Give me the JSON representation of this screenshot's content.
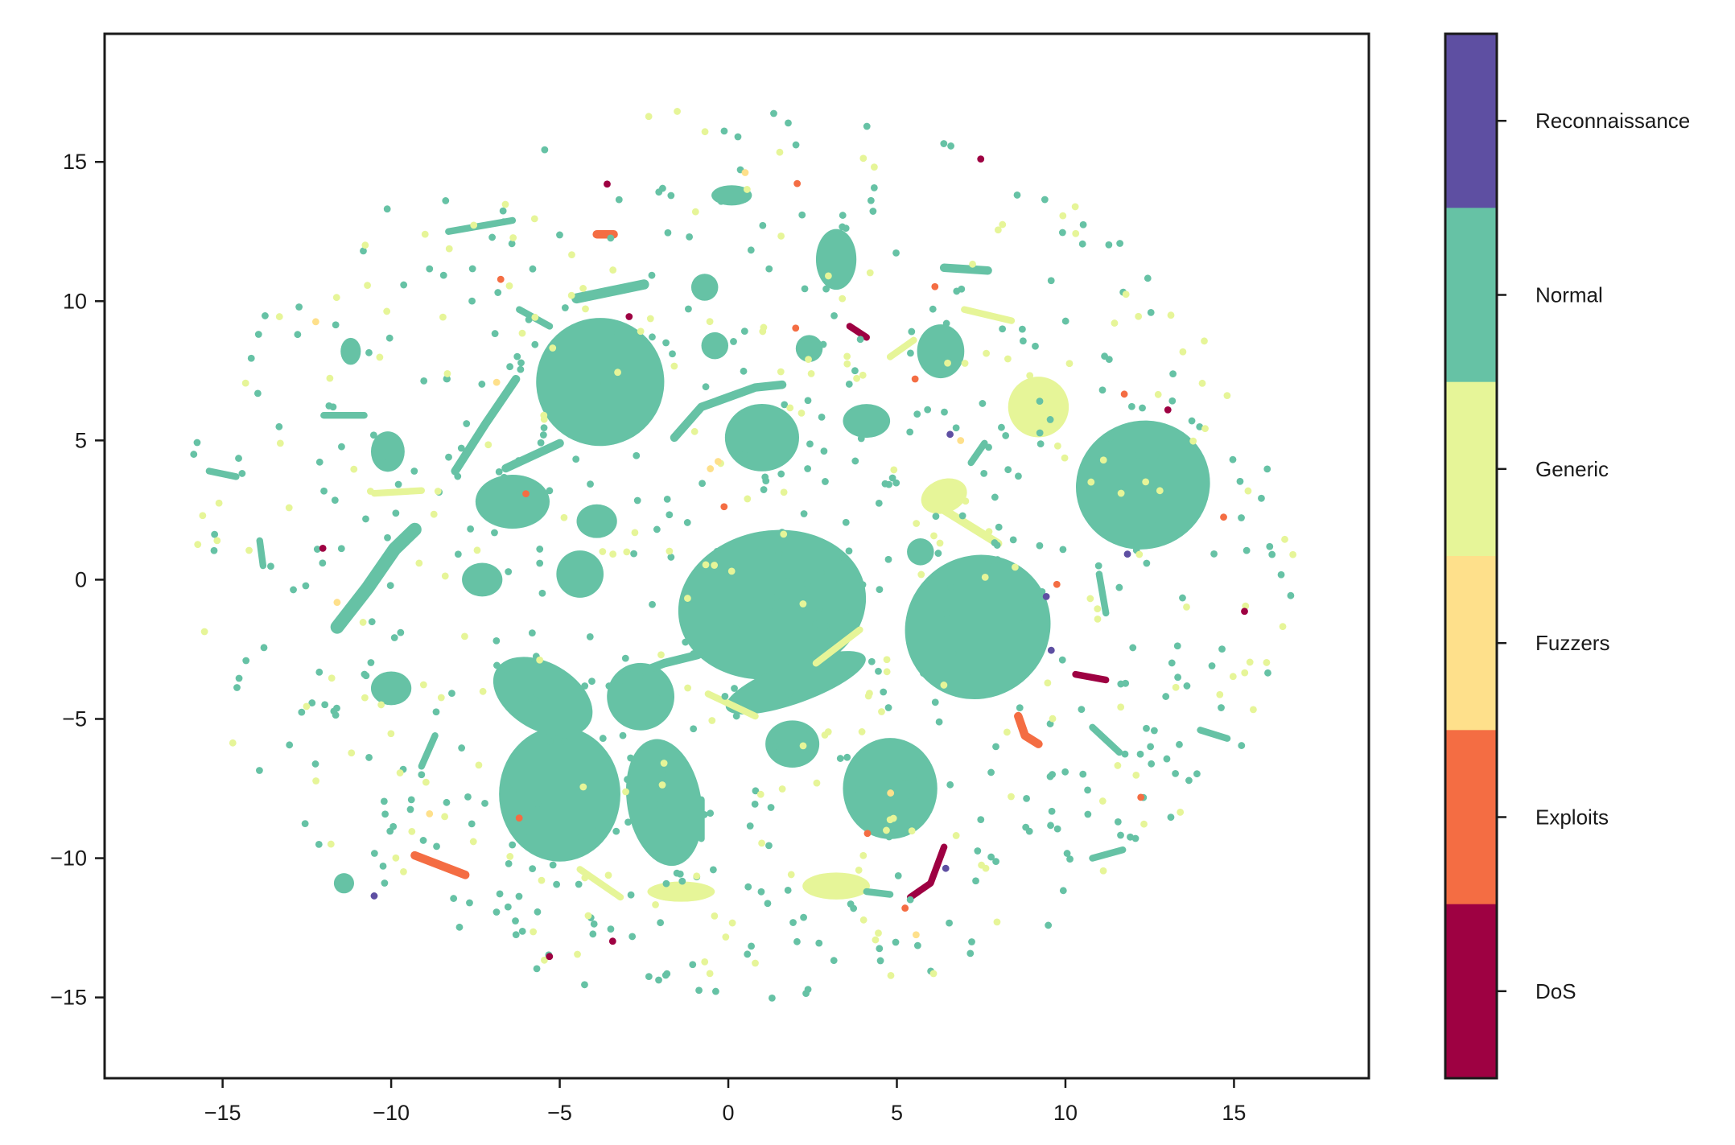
{
  "chart_data": {
    "type": "scatter",
    "title": "",
    "xlabel": "",
    "ylabel": "",
    "xlim": [
      -18.5,
      19.0
    ],
    "ylim": [
      -17.9,
      19.6
    ],
    "xticks": [
      -15,
      -10,
      -5,
      0,
      5,
      10,
      15
    ],
    "yticks": [
      -15,
      -10,
      -5,
      0,
      5,
      10,
      15
    ],
    "xtick_labels": [
      "−15",
      "−10",
      "−5",
      "0",
      "5",
      "10",
      "15"
    ],
    "ytick_labels": [
      "−15",
      "−10",
      "−5",
      "0",
      "5",
      "10",
      "15"
    ],
    "grid": false,
    "colorbar": {
      "categories": [
        "Reconnaissance",
        "Normal",
        "Generic",
        "Fuzzers",
        "Exploits",
        "DoS"
      ],
      "colors": [
        "#5e4fa2",
        "#66c2a5",
        "#e6f598",
        "#fee08b",
        "#f46d43",
        "#9e0142"
      ]
    },
    "clusters": [
      {
        "class": "Normal",
        "shape": "blob",
        "cx": 1.3,
        "cy": -0.9,
        "rx": 2.8,
        "ry": 2.2,
        "angle": 10
      },
      {
        "class": "Normal",
        "shape": "blob",
        "cx": 7.4,
        "cy": -1.7,
        "rx": 2.2,
        "ry": 2.1,
        "angle": 40
      },
      {
        "class": "Normal",
        "shape": "blob",
        "cx": 12.3,
        "cy": 3.4,
        "rx": 2.0,
        "ry": 1.9,
        "angle": 20
      },
      {
        "class": "Normal",
        "shape": "blob",
        "cx": -3.8,
        "cy": 7.1,
        "rx": 1.9,
        "ry": 1.9,
        "angle": 15
      },
      {
        "class": "Normal",
        "shape": "blob",
        "cx": -5.0,
        "cy": -7.7,
        "rx": 1.8,
        "ry": 2.0,
        "angle": 0
      },
      {
        "class": "Normal",
        "shape": "blob",
        "cx": -1.9,
        "cy": -8.0,
        "rx": 1.1,
        "ry": 1.9,
        "angle": 10
      },
      {
        "class": "Normal",
        "shape": "blob",
        "cx": 4.8,
        "cy": -7.5,
        "rx": 1.4,
        "ry": 1.5,
        "angle": 0
      },
      {
        "class": "Normal",
        "shape": "blob",
        "cx": 1.0,
        "cy": 5.1,
        "rx": 1.1,
        "ry": 1.0,
        "angle": 0
      },
      {
        "class": "Normal",
        "shape": "blob",
        "cx": -6.4,
        "cy": 2.8,
        "rx": 1.1,
        "ry": 0.8,
        "angle": 0
      },
      {
        "class": "Normal",
        "shape": "blob",
        "cx": 2.0,
        "cy": -3.7,
        "rx": 2.2,
        "ry": 0.6,
        "angle": 20
      },
      {
        "class": "Normal",
        "shape": "blob",
        "cx": -5.5,
        "cy": -4.2,
        "rx": 1.6,
        "ry": 1.0,
        "angle": -30
      },
      {
        "class": "Normal",
        "shape": "blob",
        "cx": -2.6,
        "cy": -4.2,
        "rx": 1.0,
        "ry": 1.0,
        "angle": 20
      },
      {
        "class": "Normal",
        "shape": "blob",
        "cx": 6.3,
        "cy": 8.2,
        "rx": 0.7,
        "ry": 0.8,
        "angle": 0
      },
      {
        "class": "Normal",
        "shape": "blob",
        "cx": 3.2,
        "cy": 11.5,
        "rx": 0.6,
        "ry": 0.9,
        "angle": 0
      },
      {
        "class": "Normal",
        "shape": "blob",
        "cx": -4.4,
        "cy": 0.2,
        "rx": 0.7,
        "ry": 0.7,
        "angle": 0
      },
      {
        "class": "Normal",
        "shape": "blob",
        "cx": -7.3,
        "cy": 0.0,
        "rx": 0.6,
        "ry": 0.5,
        "angle": 0
      },
      {
        "class": "Normal",
        "shape": "blob",
        "cx": -10.1,
        "cy": 4.6,
        "rx": 0.5,
        "ry": 0.6,
        "angle": 0
      },
      {
        "class": "Normal",
        "shape": "blob",
        "cx": -3.9,
        "cy": 2.1,
        "rx": 0.6,
        "ry": 0.5,
        "angle": 0
      },
      {
        "class": "Normal",
        "shape": "blob",
        "cx": 1.9,
        "cy": -5.9,
        "rx": 0.8,
        "ry": 0.7,
        "angle": 0
      },
      {
        "class": "Normal",
        "shape": "blob",
        "cx": -10.0,
        "cy": -3.9,
        "rx": 0.6,
        "ry": 0.5,
        "angle": 0
      },
      {
        "class": "Normal",
        "shape": "blob",
        "cx": 4.1,
        "cy": 5.7,
        "rx": 0.7,
        "ry": 0.5,
        "angle": 0
      },
      {
        "class": "Normal",
        "shape": "blob",
        "cx": 0.1,
        "cy": 13.8,
        "rx": 0.6,
        "ry": 0.3,
        "angle": 0
      },
      {
        "class": "Normal",
        "shape": "blob",
        "cx": -0.7,
        "cy": 10.5,
        "rx": 0.4,
        "ry": 0.4,
        "angle": 0
      },
      {
        "class": "Normal",
        "shape": "blob",
        "cx": -0.4,
        "cy": 8.4,
        "rx": 0.4,
        "ry": 0.4,
        "angle": 0
      },
      {
        "class": "Normal",
        "shape": "blob",
        "cx": 2.4,
        "cy": 8.3,
        "rx": 0.4,
        "ry": 0.4,
        "angle": 0
      },
      {
        "class": "Normal",
        "shape": "blob",
        "cx": -11.2,
        "cy": 8.2,
        "rx": 0.3,
        "ry": 0.4,
        "angle": 0
      },
      {
        "class": "Normal",
        "shape": "blob",
        "cx": -11.4,
        "cy": -10.9,
        "rx": 0.3,
        "ry": 0.3,
        "angle": 0
      },
      {
        "class": "Normal",
        "shape": "blob",
        "cx": 5.7,
        "cy": 1.0,
        "rx": 0.4,
        "ry": 0.4,
        "angle": 0
      },
      {
        "class": "Generic",
        "shape": "blob",
        "cx": 9.2,
        "cy": 6.2,
        "rx": 0.9,
        "ry": 0.9,
        "angle": 0
      },
      {
        "class": "Generic",
        "shape": "blob",
        "cx": 6.4,
        "cy": 3.0,
        "rx": 0.7,
        "ry": 0.5,
        "angle": 20
      },
      {
        "class": "Generic",
        "shape": "blob",
        "cx": 3.2,
        "cy": -11.0,
        "rx": 1.0,
        "ry": 0.4,
        "angle": 0
      },
      {
        "class": "Generic",
        "shape": "blob",
        "cx": -1.4,
        "cy": -11.2,
        "rx": 1.0,
        "ry": 0.3,
        "angle": 0
      },
      {
        "class": "Normal",
        "shape": "stroke",
        "points": [
          [
            -1.6,
            5.1
          ],
          [
            -0.8,
            6.2
          ],
          [
            0.8,
            6.9
          ],
          [
            1.6,
            7.0
          ]
        ],
        "width": 0.25
      },
      {
        "class": "Normal",
        "shape": "stroke",
        "points": [
          [
            -11.6,
            -1.7
          ],
          [
            -10.7,
            -0.3
          ],
          [
            -9.9,
            1.1
          ],
          [
            -9.3,
            1.8
          ]
        ],
        "width": 0.4
      },
      {
        "class": "Normal",
        "shape": "stroke",
        "points": [
          [
            -8.1,
            3.9
          ],
          [
            -7.2,
            5.6
          ],
          [
            -6.3,
            7.2
          ]
        ],
        "width": 0.25
      },
      {
        "class": "Normal",
        "shape": "stroke",
        "points": [
          [
            -5.0,
            4.9
          ],
          [
            -6.6,
            4.0
          ]
        ],
        "width": 0.25
      },
      {
        "class": "Normal",
        "shape": "stroke",
        "points": [
          [
            -6.2,
            9.7
          ],
          [
            -5.3,
            9.1
          ]
        ],
        "width": 0.2
      },
      {
        "class": "Normal",
        "shape": "stroke",
        "points": [
          [
            -4.5,
            10.1
          ],
          [
            -2.5,
            10.6
          ]
        ],
        "width": 0.3
      },
      {
        "class": "Normal",
        "shape": "stroke",
        "points": [
          [
            -8.3,
            12.5
          ],
          [
            -6.4,
            12.9
          ]
        ],
        "width": 0.2
      },
      {
        "class": "Normal",
        "shape": "stroke",
        "points": [
          [
            -3.2,
            -3.6
          ],
          [
            -1.9,
            -3.0
          ],
          [
            -0.9,
            -2.7
          ]
        ],
        "width": 0.25
      },
      {
        "class": "Normal",
        "shape": "stroke",
        "points": [
          [
            -0.8,
            -7.9
          ],
          [
            -0.8,
            -9.3
          ]
        ],
        "width": 0.2
      },
      {
        "class": "Normal",
        "shape": "stroke",
        "points": [
          [
            6.4,
            11.2
          ],
          [
            7.7,
            11.1
          ]
        ],
        "width": 0.25
      },
      {
        "class": "Normal",
        "shape": "stroke",
        "points": [
          [
            7.2,
            4.2
          ],
          [
            7.6,
            4.9
          ]
        ],
        "width": 0.2
      },
      {
        "class": "Normal",
        "shape": "stroke",
        "points": [
          [
            11.0,
            0.2
          ],
          [
            11.2,
            -1.2
          ]
        ],
        "width": 0.2
      },
      {
        "class": "Normal",
        "shape": "stroke",
        "points": [
          [
            10.8,
            -5.3
          ],
          [
            11.6,
            -6.2
          ]
        ],
        "width": 0.2
      },
      {
        "class": "Normal",
        "shape": "stroke",
        "points": [
          [
            10.8,
            -10.0
          ],
          [
            11.7,
            -9.7
          ]
        ],
        "width": 0.2
      },
      {
        "class": "Normal",
        "shape": "stroke",
        "points": [
          [
            14.0,
            -5.4
          ],
          [
            14.8,
            -5.7
          ]
        ],
        "width": 0.2
      },
      {
        "class": "Normal",
        "shape": "stroke",
        "points": [
          [
            -15.4,
            3.9
          ],
          [
            -14.6,
            3.7
          ]
        ],
        "width": 0.2
      },
      {
        "class": "Normal",
        "shape": "stroke",
        "points": [
          [
            -13.9,
            1.4
          ],
          [
            -13.8,
            0.5
          ]
        ],
        "width": 0.2
      },
      {
        "class": "Normal",
        "shape": "stroke",
        "points": [
          [
            -12.0,
            5.9
          ],
          [
            -10.8,
            5.9
          ]
        ],
        "width": 0.2
      },
      {
        "class": "Normal",
        "shape": "stroke",
        "points": [
          [
            -9.1,
            -6.7
          ],
          [
            -8.7,
            -5.6
          ]
        ],
        "width": 0.2
      },
      {
        "class": "Normal",
        "shape": "stroke",
        "points": [
          [
            4.1,
            -11.2
          ],
          [
            4.8,
            -11.3
          ]
        ],
        "width": 0.2
      },
      {
        "class": "Generic",
        "shape": "stroke",
        "points": [
          [
            6.0,
            2.8
          ],
          [
            7.2,
            1.9
          ],
          [
            8.0,
            1.3
          ]
        ],
        "width": 0.25
      },
      {
        "class": "Generic",
        "shape": "stroke",
        "points": [
          [
            4.8,
            8.0
          ],
          [
            5.5,
            8.6
          ]
        ],
        "width": 0.2
      },
      {
        "class": "Generic",
        "shape": "stroke",
        "points": [
          [
            -10.5,
            3.1
          ],
          [
            -9.1,
            3.2
          ]
        ],
        "width": 0.2
      },
      {
        "class": "Generic",
        "shape": "stroke",
        "points": [
          [
            -0.6,
            -4.1
          ],
          [
            0.8,
            -4.9
          ]
        ],
        "width": 0.2
      },
      {
        "class": "Generic",
        "shape": "stroke",
        "points": [
          [
            -4.4,
            -10.4
          ],
          [
            -3.2,
            -11.4
          ]
        ],
        "width": 0.2
      },
      {
        "class": "Generic",
        "shape": "stroke",
        "points": [
          [
            7.0,
            9.7
          ],
          [
            8.4,
            9.3
          ]
        ],
        "width": 0.2
      },
      {
        "class": "Generic",
        "shape": "stroke",
        "points": [
          [
            2.6,
            -3.0
          ],
          [
            3.9,
            -1.8
          ]
        ],
        "width": 0.2
      },
      {
        "class": "Exploits",
        "shape": "stroke",
        "points": [
          [
            8.6,
            -4.9
          ],
          [
            8.8,
            -5.6
          ],
          [
            9.2,
            -5.9
          ]
        ],
        "width": 0.25
      },
      {
        "class": "DoS",
        "shape": "stroke",
        "points": [
          [
            5.4,
            -11.4
          ],
          [
            6.0,
            -10.9
          ],
          [
            6.4,
            -9.6
          ]
        ],
        "width": 0.2
      },
      {
        "class": "Exploits",
        "shape": "stroke",
        "points": [
          [
            -3.9,
            12.4
          ],
          [
            -3.4,
            12.4
          ]
        ],
        "width": 0.25
      },
      {
        "class": "DoS",
        "shape": "stroke",
        "points": [
          [
            3.6,
            9.1
          ],
          [
            4.1,
            8.7
          ]
        ],
        "width": 0.2
      },
      {
        "class": "Exploits",
        "shape": "stroke",
        "points": [
          [
            -9.3,
            -9.9
          ],
          [
            -7.8,
            -10.6
          ]
        ],
        "width": 0.25
      },
      {
        "class": "DoS",
        "shape": "stroke",
        "points": [
          [
            10.3,
            -3.4
          ],
          [
            11.2,
            -3.6
          ]
        ],
        "width": 0.2
      }
    ]
  }
}
